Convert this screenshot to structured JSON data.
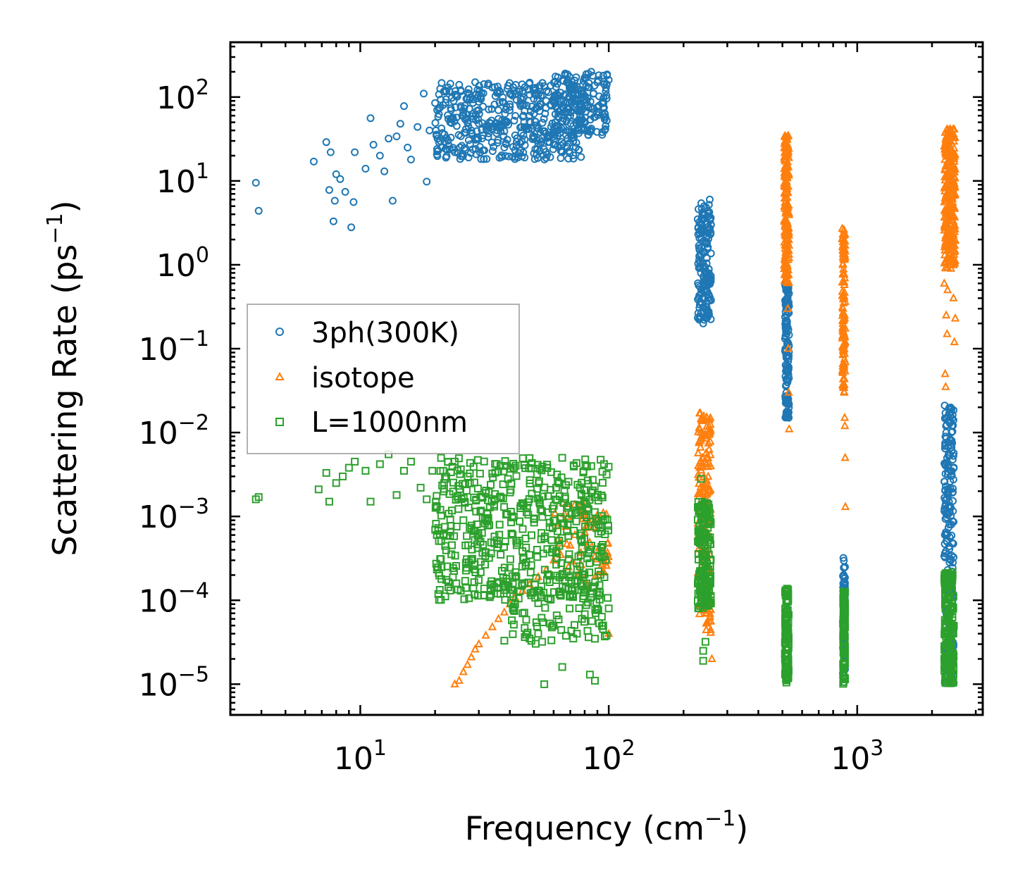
{
  "chart_data": {
    "type": "scatter",
    "title": "",
    "xlabel": "Frequency",
    "xlabel_unit": "(cm",
    "xlabel_unit_exp": "−1",
    "xlabel_unit_close": ")",
    "ylabel": "Scattering Rate",
    "ylabel_unit": "(ps",
    "ylabel_unit_exp": "−1",
    "ylabel_unit_close": ")",
    "xscale": "log",
    "yscale": "log",
    "xlim": [
      3,
      3200
    ],
    "ylim": [
      4.3e-06,
      450
    ],
    "x_ticks": [
      {
        "value": 10,
        "base": "10",
        "exp": "1"
      },
      {
        "value": 100,
        "base": "10",
        "exp": "2"
      },
      {
        "value": 1000,
        "base": "10",
        "exp": "3"
      }
    ],
    "y_ticks": [
      {
        "value": 100,
        "base": "10",
        "exp": "2"
      },
      {
        "value": 10,
        "base": "10",
        "exp": "1"
      },
      {
        "value": 1,
        "base": "10",
        "exp": "0"
      },
      {
        "value": 0.1,
        "base": "10",
        "exp": "−1"
      },
      {
        "value": 0.01,
        "base": "10",
        "exp": "−2"
      },
      {
        "value": 0.001,
        "base": "10",
        "exp": "−3"
      },
      {
        "value": 0.0001,
        "base": "10",
        "exp": "−4"
      },
      {
        "value": 1e-05,
        "base": "10",
        "exp": "−5"
      }
    ],
    "grid": false,
    "legend_position": "center-left",
    "series": [
      {
        "name": "3ph(300K)",
        "marker": "circle",
        "color": "#1f77b4",
        "points": [
          [
            3.8,
            9.5
          ],
          [
            3.9,
            4.4
          ],
          [
            6.5,
            17
          ],
          [
            7.3,
            29
          ],
          [
            7.5,
            7.8
          ],
          [
            7.6,
            22
          ],
          [
            7.8,
            3.3
          ],
          [
            7.9,
            5.8
          ],
          [
            8.0,
            12
          ],
          [
            8.3,
            10.5
          ],
          [
            8.7,
            7.4
          ],
          [
            9.2,
            2.8
          ],
          [
            9.4,
            5.6
          ],
          [
            9.5,
            22
          ],
          [
            10.5,
            14
          ],
          [
            11.0,
            56
          ],
          [
            11.3,
            27
          ],
          [
            12.0,
            20
          ],
          [
            12.5,
            13
          ],
          [
            13.0,
            32
          ],
          [
            13.5,
            5.8
          ],
          [
            14.0,
            34
          ],
          [
            14.5,
            48
          ],
          [
            15.0,
            78
          ],
          [
            15.5,
            25
          ],
          [
            16.0,
            18
          ],
          [
            17.0,
            44
          ],
          [
            18.0,
            110
          ],
          [
            18.5,
            9.8
          ],
          [
            19.0,
            40
          ],
          [
            20.0,
            85
          ],
          [
            21.0,
            30
          ],
          [
            22.0,
            120
          ],
          [
            23.0,
            50
          ],
          [
            24.0,
            22
          ],
          [
            25.0,
            140
          ],
          [
            26.0,
            65
          ],
          [
            27.0,
            95
          ],
          [
            28.0,
            40
          ],
          [
            29.0,
            150
          ],
          [
            30.0,
            70
          ],
          [
            32.0,
            45
          ],
          [
            34.0,
            130
          ],
          [
            36.0,
            55
          ],
          [
            38.0,
            25
          ],
          [
            40.0,
            110
          ],
          [
            42.0,
            35
          ],
          [
            45.0,
            80
          ],
          [
            48.0,
            60
          ],
          [
            52.0,
            28
          ],
          [
            56.0,
            90
          ],
          [
            60.0,
            40
          ],
          [
            65.0,
            22
          ],
          [
            70.0,
            60
          ],
          [
            75.0,
            110
          ],
          [
            80.0,
            170
          ],
          [
            85.0,
            200
          ],
          [
            90.0,
            150
          ],
          [
            95.0,
            180
          ],
          [
            100.0,
            160
          ],
          [
            228,
            3.5
          ],
          [
            232,
            1.5
          ],
          [
            235,
            0.8
          ],
          [
            238,
            0.4
          ],
          [
            240,
            0.2
          ],
          [
            242,
            5.0
          ],
          [
            245,
            2.5
          ],
          [
            248,
            1.2
          ],
          [
            250,
            0.6
          ],
          [
            255,
            6.0
          ],
          [
            258,
            3.0
          ],
          [
            515,
            0.55
          ],
          [
            518,
            0.3
          ],
          [
            520,
            0.15
          ],
          [
            522,
            0.08
          ],
          [
            524,
            0.04
          ],
          [
            526,
            0.025
          ],
          [
            530,
            0.015
          ],
          [
            880,
            0.00032
          ],
          [
            882,
            0.0002
          ],
          [
            885,
            0.00012
          ],
          [
            888,
            6e-05
          ],
          [
            890,
            3e-05
          ],
          [
            893,
            1.5e-05
          ],
          [
            2250,
            0.021
          ],
          [
            2280,
            0.01
          ],
          [
            2300,
            0.005
          ],
          [
            2320,
            0.002
          ],
          [
            2350,
            0.0008
          ],
          [
            2380,
            0.0003
          ],
          [
            2400,
            0.008
          ],
          [
            2420,
            0.0001
          ],
          [
            2440,
            3e-05
          ]
        ],
        "bands": [
          {
            "xmin": 20,
            "xmax": 80,
            "ymin": 18,
            "ymax": 150,
            "n": 450
          },
          {
            "xmin": 60,
            "xmax": 100,
            "ymin": 35,
            "ymax": 200,
            "n": 160
          },
          {
            "xmin": 228,
            "xmax": 258,
            "ymin": 0.22,
            "ymax": 5.5,
            "n": 160
          },
          {
            "xmin": 512,
            "xmax": 532,
            "ymin": 0.015,
            "ymax": 0.6,
            "n": 120
          },
          {
            "xmin": 876,
            "xmax": 894,
            "ymin": 1e-05,
            "ymax": 0.0003,
            "n": 70
          },
          {
            "xmin": 2240,
            "xmax": 2450,
            "ymin": 1e-05,
            "ymax": 0.02,
            "n": 220
          }
        ]
      },
      {
        "name": "isotope",
        "marker": "triangle",
        "color": "#ff7f0e",
        "points": [
          [
            24,
            1e-05
          ],
          [
            25,
            1.1e-05
          ],
          [
            26,
            1.4e-05
          ],
          [
            27,
            1.7e-05
          ],
          [
            28,
            2.1e-05
          ],
          [
            29,
            2.6e-05
          ],
          [
            30,
            3e-05
          ],
          [
            32,
            3.8e-05
          ],
          [
            34,
            4.8e-05
          ],
          [
            36,
            6e-05
          ],
          [
            38,
            7.2e-05
          ],
          [
            40,
            9e-05
          ],
          [
            42,
            0.000108
          ],
          [
            45,
            0.00013
          ],
          [
            48,
            0.000155
          ],
          [
            52,
            0.00019
          ],
          [
            56,
            0.00023
          ],
          [
            60,
            0.0003
          ],
          [
            70,
            0.00045
          ],
          [
            80,
            0.00065
          ],
          [
            90,
            0.0009
          ],
          [
            95,
            0.0011
          ],
          [
            100,
            4e-05
          ],
          [
            232,
            0.017
          ],
          [
            235,
            0.01
          ],
          [
            238,
            0.005
          ],
          [
            240,
            0.002
          ],
          [
            245,
            0.0008
          ],
          [
            250,
            0.0003
          ],
          [
            255,
            0.0001
          ],
          [
            260,
            2e-05
          ],
          [
            510,
            34
          ],
          [
            512,
            25
          ],
          [
            515,
            15
          ],
          [
            518,
            9
          ],
          [
            520,
            5
          ],
          [
            522,
            2
          ],
          [
            524,
            0.8
          ],
          [
            526,
            0.3
          ],
          [
            528,
            0.1
          ],
          [
            530,
            0.03
          ],
          [
            532,
            0.011
          ],
          [
            870,
            2.7
          ],
          [
            875,
            1.5
          ],
          [
            880,
            0.8
          ],
          [
            882,
            0.35
          ],
          [
            885,
            0.15
          ],
          [
            886,
            0.06
          ],
          [
            888,
            0.03
          ],
          [
            890,
            0.015
          ],
          [
            892,
            0.012
          ],
          [
            894,
            0.005
          ],
          [
            896,
            0.0013
          ],
          [
            2240,
            0.6
          ],
          [
            2260,
            0.05
          ],
          [
            2270,
            0.035
          ],
          [
            2280,
            0.25
          ],
          [
            2300,
            0.15
          ],
          [
            2310,
            0.5
          ],
          [
            2330,
            40
          ],
          [
            2360,
            30
          ],
          [
            2380,
            20
          ],
          [
            2400,
            10
          ],
          [
            2420,
            5
          ],
          [
            2440,
            0.4
          ],
          [
            2460,
            0.12
          ],
          [
            2480,
            0.23
          ]
        ],
        "bands": [
          {
            "xmin": 60,
            "xmax": 100,
            "ymin": 0.00015,
            "ymax": 0.0015,
            "n": 60
          },
          {
            "xmin": 228,
            "xmax": 258,
            "ymin": 4e-05,
            "ymax": 0.018,
            "n": 170
          },
          {
            "xmin": 508,
            "xmax": 532,
            "ymin": 0.6,
            "ymax": 35,
            "n": 170
          },
          {
            "xmin": 870,
            "xmax": 896,
            "ymin": 0.03,
            "ymax": 2.7,
            "n": 110
          },
          {
            "xmin": 2240,
            "xmax": 2480,
            "ymin": 0.9,
            "ymax": 42,
            "n": 280
          }
        ]
      },
      {
        "name": "L=1000nm",
        "marker": "square",
        "color": "#2ca02c",
        "points": [
          [
            3.8,
            0.0016
          ],
          [
            3.9,
            0.0017
          ],
          [
            6.8,
            0.0021
          ],
          [
            7.3,
            0.0033
          ],
          [
            7.5,
            0.0015
          ],
          [
            8.0,
            0.0025
          ],
          [
            8.5,
            0.003
          ],
          [
            9.0,
            0.0038
          ],
          [
            9.5,
            0.0045
          ],
          [
            10.5,
            0.0035
          ],
          [
            11.0,
            0.0015
          ],
          [
            12.0,
            0.0042
          ],
          [
            13.0,
            0.0055
          ],
          [
            14.0,
            0.0018
          ],
          [
            15.0,
            0.0035
          ],
          [
            16.0,
            0.0045
          ],
          [
            17.5,
            0.0022
          ],
          [
            18.5,
            0.0016
          ],
          [
            19.5,
            0.0035
          ],
          [
            21.0,
            0.0012
          ],
          [
            22.0,
            0.0028
          ],
          [
            24.0,
            0.0045
          ],
          [
            26.0,
            0.0009
          ],
          [
            28.0,
            0.0007
          ],
          [
            30.0,
            0.00055
          ],
          [
            33.0,
            0.00032
          ],
          [
            36.0,
            0.00014
          ],
          [
            38.0,
            3.3e-05
          ],
          [
            42.0,
            9e-05
          ],
          [
            45.0,
            7e-05
          ],
          [
            48.0,
            3.5e-05
          ],
          [
            52.0,
            4e-05
          ],
          [
            55.0,
            1e-05
          ],
          [
            60.0,
            5e-05
          ],
          [
            65.0,
            1.6e-05
          ],
          [
            72.0,
            3.5e-05
          ],
          [
            78.0,
            6e-05
          ],
          [
            84.0,
            1.3e-05
          ],
          [
            88.0,
            1.1e-05
          ],
          [
            95.0,
            5e-05
          ],
          [
            98.0,
            3.8e-05
          ],
          [
            100.0,
            8e-05
          ],
          [
            235,
            0.0028
          ],
          [
            240,
            2.5e-05
          ],
          [
            245,
            3.2e-05
          ],
          [
            240,
            1.9e-05
          ]
        ],
        "bands": [
          {
            "xmin": 20,
            "xmax": 100,
            "ymin": 0.0001,
            "ymax": 0.005,
            "n": 520
          },
          {
            "xmin": 40,
            "xmax": 100,
            "ymin": 3e-05,
            "ymax": 0.0002,
            "n": 90
          },
          {
            "xmin": 228,
            "xmax": 258,
            "ymin": 8e-05,
            "ymax": 0.0015,
            "n": 170
          },
          {
            "xmin": 512,
            "xmax": 530,
            "ymin": 1e-05,
            "ymax": 0.00014,
            "n": 110
          },
          {
            "xmin": 876,
            "xmax": 894,
            "ymin": 1e-05,
            "ymax": 0.00013,
            "n": 90
          },
          {
            "xmin": 2240,
            "xmax": 2450,
            "ymin": 1e-05,
            "ymax": 0.00022,
            "n": 170
          }
        ]
      }
    ]
  }
}
